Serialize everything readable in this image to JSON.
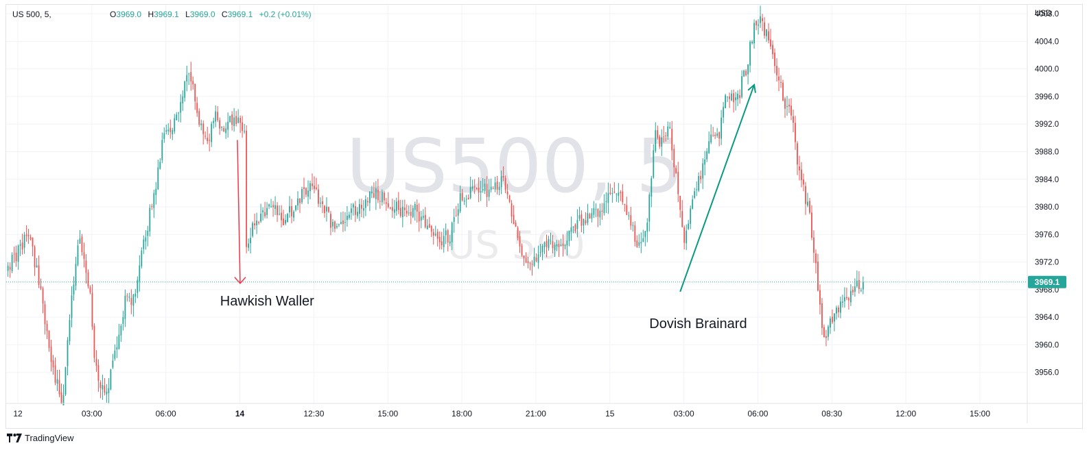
{
  "header": {
    "symbol": "US 500, 5,",
    "open_label": "O",
    "open": "3969.0",
    "high_label": "H",
    "high": "3969.1",
    "low_label": "L",
    "low": "3969.0",
    "close_label": "C",
    "close": "3969.1",
    "change": "+0.2 (+0.01%)"
  },
  "watermark": {
    "main": "US500, 5",
    "sub": "US 500"
  },
  "footer": {
    "brand": "TradingView",
    "logo_icon": "tradingview-logo-icon"
  },
  "colors": {
    "up": "#26a69a",
    "down": "#ef5350",
    "grid": "#f0f3fa",
    "price_line": "#26a69a"
  },
  "chart_data": {
    "type": "candlestick",
    "title": "",
    "xlabel": "",
    "ylabel": "",
    "unit": "USD",
    "ylim": [
      3951.5,
      4009.3
    ],
    "y_ticks": [
      4008.0,
      4004.0,
      4000.0,
      3996.0,
      3992.0,
      3988.0,
      3984.0,
      3980.0,
      3976.0,
      3972.0,
      3968.0,
      3964.0,
      3960.0,
      3956.0
    ],
    "y_tick_labels": [
      "4008.0",
      "4004.0",
      "4000.0",
      "3996.0",
      "3992.0",
      "3988.0",
      "3984.0",
      "3980.0",
      "3976.0",
      "3972.0",
      "3968.0",
      "3964.0",
      "3960.0",
      "3956.0"
    ],
    "x_ticks": [
      {
        "label": "12",
        "hour": 0,
        "bold": false
      },
      {
        "label": "03:00",
        "hour": 3,
        "bold": false
      },
      {
        "label": "06:00",
        "hour": 6,
        "bold": false
      },
      {
        "label": "14",
        "hour": 9,
        "bold": true
      },
      {
        "label": "12:30",
        "hour": 12,
        "bold": false
      },
      {
        "label": "15:00",
        "hour": 15,
        "bold": false
      },
      {
        "label": "18:00",
        "hour": 18,
        "bold": false
      },
      {
        "label": "21:00",
        "hour": 21,
        "bold": false
      },
      {
        "label": "15",
        "hour": 24,
        "bold": false
      },
      {
        "label": "03:00",
        "hour": 27,
        "bold": false
      },
      {
        "label": "06:00",
        "hour": 30,
        "bold": false
      },
      {
        "label": "08:30",
        "hour": 33,
        "bold": false
      },
      {
        "label": "12:00",
        "hour": 36,
        "bold": false
      },
      {
        "label": "15:00",
        "hour": 39,
        "bold": false
      }
    ],
    "x_range_hours": [
      -0.4,
      40.0
    ],
    "last_price": 3969.1,
    "last_price_label": "3969.1",
    "bars_per_hour": 12,
    "path": [
      [
        -0.4,
        3971
      ],
      [
        0.2,
        3974
      ],
      [
        0.5,
        3976
      ],
      [
        0.9,
        3970
      ],
      [
        1.1,
        3966
      ],
      [
        1.4,
        3957
      ],
      [
        1.9,
        3952
      ],
      [
        2.2,
        3965
      ],
      [
        2.6,
        3976
      ],
      [
        3.0,
        3968
      ],
      [
        3.2,
        3958
      ],
      [
        3.6,
        3952
      ],
      [
        4.0,
        3958
      ],
      [
        4.4,
        3966
      ],
      [
        4.8,
        3967
      ],
      [
        5.2,
        3975
      ],
      [
        5.6,
        3982
      ],
      [
        6.0,
        3990
      ],
      [
        6.4,
        3992
      ],
      [
        6.9,
        3998
      ],
      [
        7.1,
        3999
      ],
      [
        7.4,
        3992
      ],
      [
        7.8,
        3990
      ],
      [
        8.1,
        3994
      ],
      [
        8.3,
        3990
      ],
      [
        8.6,
        3993
      ],
      [
        9.0,
        3992
      ],
      [
        9.3,
        3990
      ],
      [
        9.35,
        3975
      ],
      [
        9.7,
        3978
      ],
      [
        10.4,
        3980
      ],
      [
        10.9,
        3978
      ],
      [
        11.4,
        3981
      ],
      [
        12.0,
        3983
      ],
      [
        12.5,
        3980
      ],
      [
        12.9,
        3977
      ],
      [
        13.6,
        3979
      ],
      [
        14.4,
        3982
      ],
      [
        15.1,
        3981
      ],
      [
        15.6,
        3979
      ],
      [
        16.2,
        3980
      ],
      [
        16.6,
        3977
      ],
      [
        17.2,
        3975
      ],
      [
        17.6,
        3976
      ],
      [
        18.0,
        3981
      ],
      [
        18.6,
        3983
      ],
      [
        19.3,
        3982
      ],
      [
        19.8,
        3984
      ],
      [
        20.2,
        3978
      ],
      [
        20.6,
        3973
      ],
      [
        21.0,
        3972
      ],
      [
        21.6,
        3975
      ],
      [
        22.1,
        3974
      ],
      [
        22.6,
        3977
      ],
      [
        23.2,
        3979
      ],
      [
        23.8,
        3980
      ],
      [
        24.3,
        3983
      ],
      [
        24.8,
        3979
      ],
      [
        25.2,
        3974
      ],
      [
        25.6,
        3978
      ],
      [
        25.9,
        3991
      ],
      [
        26.2,
        3989
      ],
      [
        26.5,
        3991
      ],
      [
        26.8,
        3984
      ],
      [
        27.1,
        3974
      ],
      [
        27.4,
        3980
      ],
      [
        27.8,
        3985
      ],
      [
        28.1,
        3990
      ],
      [
        28.5,
        3990
      ],
      [
        28.8,
        3997
      ],
      [
        29.2,
        3995
      ],
      [
        29.6,
        4000
      ],
      [
        29.9,
        4006
      ],
      [
        30.2,
        4007
      ],
      [
        30.5,
        4004
      ],
      [
        30.8,
        4000
      ],
      [
        31.0,
        3998
      ],
      [
        31.2,
        3995
      ],
      [
        31.5,
        3994
      ],
      [
        31.7,
        3985
      ],
      [
        31.9,
        3983
      ],
      [
        32.2,
        3978
      ],
      [
        32.4,
        3972
      ],
      [
        32.6,
        3965
      ],
      [
        32.8,
        3961
      ],
      [
        33.0,
        3963
      ],
      [
        33.3,
        3965
      ],
      [
        33.6,
        3966
      ],
      [
        33.9,
        3967.5
      ],
      [
        34.2,
        3968.6
      ],
      [
        34.3,
        3969.1
      ]
    ],
    "annotations": [
      {
        "text": "Hawkish Waller",
        "color": "#f23645",
        "hour": 8.9,
        "price_from": 3989.7,
        "price_to": 3968.9,
        "label_hour": 8.2,
        "label_price": 3965.7
      },
      {
        "text": "Dovish Brainard",
        "color": "#089981",
        "hour_from": 26.85,
        "price_from": 3967.7,
        "hour_to": 29.85,
        "price_to": 3997.7,
        "label_hour": 25.6,
        "label_price": 3962.4
      }
    ]
  }
}
